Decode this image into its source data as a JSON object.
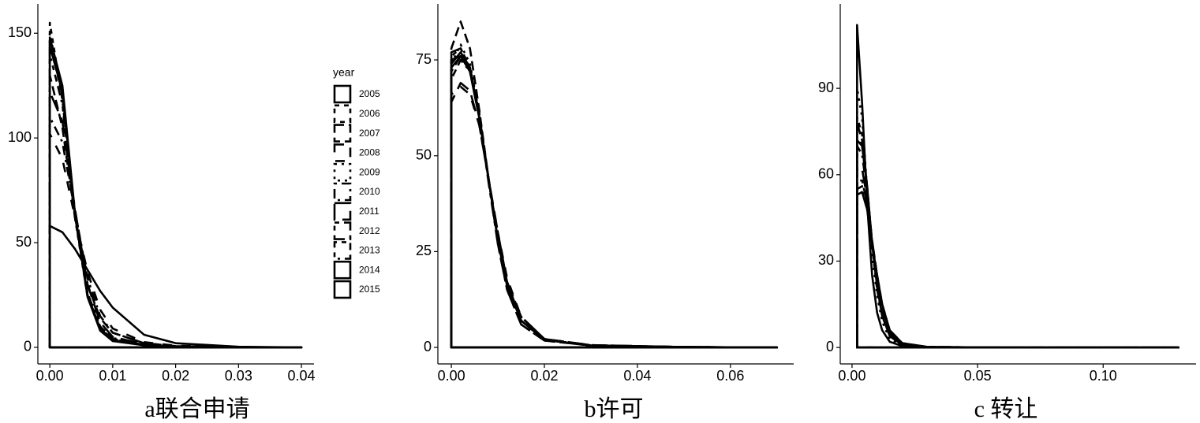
{
  "chart_data": [
    {
      "type": "line",
      "title": "a联合申请",
      "legend": "right",
      "legend_title": "year",
      "color": "#000000",
      "xlim": [
        -0.0019,
        0.042
      ],
      "ylim": [
        -7.9,
        164
      ],
      "xticks": [
        {
          "value": 0,
          "label": "0.00"
        },
        {
          "value": 0.01,
          "label": "0.01"
        },
        {
          "value": 0.02,
          "label": "0.02"
        },
        {
          "value": 0.03,
          "label": "0.03"
        },
        {
          "value": 0.04,
          "label": "0.04"
        }
      ],
      "yticks": [
        0,
        50,
        100,
        150
      ],
      "x": [
        0,
        0.002,
        0.004,
        0.006,
        0.008,
        0.01,
        0.015,
        0.02,
        0.03,
        0.04
      ],
      "series": [
        {
          "name": "2005",
          "linetype": "none",
          "values": [
            58,
            55,
            47,
            37,
            27,
            19,
            6,
            2,
            0.3,
            0
          ]
        },
        {
          "name": "2006",
          "linetype": "6 6",
          "values": [
            155,
            118,
            62,
            24,
            9,
            4,
            1.2,
            0.4,
            0.1,
            0
          ]
        },
        {
          "name": "2007",
          "linetype": "12 6",
          "values": [
            130,
            105,
            62,
            30,
            14,
            7,
            2,
            0.6,
            0.1,
            0
          ]
        },
        {
          "name": "2008",
          "linetype": "12 12",
          "values": [
            102,
            90,
            62,
            36,
            18,
            9,
            2.5,
            0.8,
            0.1,
            0
          ]
        },
        {
          "name": "2009",
          "linetype": "3 6",
          "values": [
            150,
            120,
            64,
            26,
            10,
            4.5,
            1.2,
            0.4,
            0.1,
            0
          ]
        },
        {
          "name": "2010",
          "linetype": "3 6 12 6",
          "values": [
            110,
            98,
            65,
            33,
            15,
            7,
            2,
            0.6,
            0.1,
            0
          ]
        },
        {
          "name": "2011",
          "linetype": "21 9",
          "values": [
            122,
            108,
            66,
            30,
            12,
            5,
            1.5,
            0.5,
            0.1,
            0
          ]
        },
        {
          "name": "2012",
          "linetype": "6 6 18 6",
          "values": [
            146,
            120,
            63,
            25,
            9,
            4,
            1.1,
            0.4,
            0.1,
            0
          ]
        },
        {
          "name": "2013",
          "linetype": "3 6 6 6 9 6 12 6",
          "values": [
            140,
            116,
            62,
            26,
            10,
            4,
            1.2,
            0.4,
            0.1,
            0
          ]
        },
        {
          "name": "2014",
          "linetype": "none",
          "values": [
            148,
            125,
            64,
            24,
            8,
            3,
            1,
            0.3,
            0.1,
            0
          ]
        },
        {
          "name": "2015",
          "linetype": "none",
          "values": [
            144,
            122,
            63,
            25,
            9,
            3.5,
            1,
            0.3,
            0.1,
            0
          ]
        }
      ]
    },
    {
      "type": "line",
      "title": "b许可",
      "color": "#000000",
      "xlim": [
        -0.0029,
        0.0736
      ],
      "ylim": [
        -4.3,
        89.6
      ],
      "xticks": [
        {
          "value": 0,
          "label": "0.00"
        },
        {
          "value": 0.02,
          "label": "0.02"
        },
        {
          "value": 0.04,
          "label": "0.04"
        },
        {
          "value": 0.06,
          "label": "0.06"
        }
      ],
      "yticks": [
        0,
        25,
        50,
        75
      ],
      "x": [
        0,
        0.002,
        0.004,
        0.006,
        0.008,
        0.01,
        0.012,
        0.015,
        0.02,
        0.03,
        0.05,
        0.07
      ],
      "series": [
        {
          "linetype": "none",
          "values": [
            75,
            76,
            72,
            60,
            44,
            28,
            16,
            7,
            2,
            0.5,
            0.1,
            0
          ]
        },
        {
          "linetype": "12 6",
          "values": [
            78,
            85,
            78,
            62,
            44,
            27,
            15,
            6,
            1.8,
            0.5,
            0.1,
            0
          ]
        },
        {
          "linetype": "12 12",
          "values": [
            66,
            68,
            66,
            58,
            44,
            30,
            18,
            8,
            2.2,
            0.6,
            0.1,
            0
          ]
        },
        {
          "linetype": "21 9",
          "values": [
            64,
            69,
            67,
            58,
            44,
            30,
            17,
            8,
            2.2,
            0.6,
            0.1,
            0
          ]
        },
        {
          "linetype": "6 6",
          "values": [
            76,
            78,
            73,
            61,
            44,
            28,
            16,
            7,
            2,
            0.5,
            0.1,
            0
          ]
        },
        {
          "linetype": "3 6",
          "values": [
            74,
            79,
            74,
            61,
            44,
            28,
            16,
            7,
            2,
            0.5,
            0.1,
            0
          ]
        },
        {
          "linetype": "3 6 12 6",
          "values": [
            72,
            76,
            72,
            60,
            44,
            29,
            17,
            7,
            2,
            0.5,
            0.1,
            0
          ]
        },
        {
          "linetype": "6 6 18 6",
          "values": [
            77,
            78,
            73,
            60,
            43,
            27,
            15,
            6,
            1.8,
            0.5,
            0.1,
            0
          ]
        },
        {
          "linetype": "3 6 6 6 9 6 12 6",
          "values": [
            70,
            75,
            72,
            60,
            44,
            29,
            17,
            8,
            2.2,
            0.6,
            0.1,
            0
          ]
        },
        {
          "linetype": "none",
          "values": [
            74,
            77,
            73,
            60,
            44,
            28,
            16,
            7,
            2,
            0.5,
            0.1,
            0
          ]
        },
        {
          "linetype": "none",
          "values": [
            73,
            76,
            72,
            60,
            44,
            28,
            16,
            7,
            2,
            0.5,
            0.1,
            0
          ]
        }
      ]
    },
    {
      "type": "line",
      "title": "c 转让",
      "color": "#000000",
      "xlim": [
        -0.0047,
        0.137
      ],
      "ylim": [
        -5.7,
        119.3
      ],
      "xticks": [
        {
          "value": 0,
          "label": "0.00"
        },
        {
          "value": 0.05,
          "label": "0.05"
        },
        {
          "value": 0.1,
          "label": "0.10"
        }
      ],
      "yticks": [
        0,
        30,
        60,
        90
      ],
      "x": [
        0.002,
        0.004,
        0.006,
        0.008,
        0.01,
        0.012,
        0.015,
        0.02,
        0.03,
        0.06,
        0.1,
        0.13
      ],
      "series": [
        {
          "linetype": "none",
          "values": [
            112,
            85,
            50,
            25,
            12,
            6,
            2,
            0.5,
            0.1,
            0,
            0,
            0
          ]
        },
        {
          "linetype": "3 6",
          "values": [
            90,
            80,
            55,
            32,
            18,
            9,
            3,
            0.6,
            0.1,
            0,
            0,
            0
          ]
        },
        {
          "linetype": "6 6",
          "values": [
            80,
            74,
            56,
            35,
            20,
            11,
            4,
            0.8,
            0.1,
            0,
            0,
            0
          ]
        },
        {
          "linetype": "12 6",
          "values": [
            78,
            72,
            56,
            36,
            21,
            12,
            4.5,
            1,
            0.1,
            0,
            0,
            0
          ]
        },
        {
          "linetype": "12 12",
          "values": [
            75,
            70,
            55,
            36,
            22,
            12,
            4.5,
            1,
            0.1,
            0,
            0,
            0
          ]
        },
        {
          "linetype": "3 6 12 6",
          "values": [
            70,
            67,
            54,
            37,
            23,
            13,
            5,
            1.2,
            0.2,
            0,
            0,
            0
          ]
        },
        {
          "linetype": "21 9",
          "values": [
            63,
            62,
            52,
            37,
            24,
            14,
            5.5,
            1.3,
            0.2,
            0,
            0,
            0
          ]
        },
        {
          "linetype": "6 6 18 6",
          "values": [
            58,
            58,
            50,
            37,
            25,
            15,
            6,
            1.5,
            0.2,
            0,
            0,
            0
          ]
        },
        {
          "linetype": "3 6 6 6 9 6 12 6",
          "values": [
            55,
            56,
            49,
            37,
            25,
            15,
            6,
            1.5,
            0.2,
            0,
            0,
            0
          ]
        },
        {
          "linetype": "none",
          "values": [
            53,
            54,
            48,
            36,
            25,
            15,
            6,
            1.5,
            0.2,
            0,
            0,
            0
          ]
        },
        {
          "linetype": "none",
          "values": [
            72,
            70,
            56,
            36,
            21,
            11,
            4,
            0.9,
            0.1,
            0,
            0,
            0
          ]
        }
      ]
    }
  ]
}
